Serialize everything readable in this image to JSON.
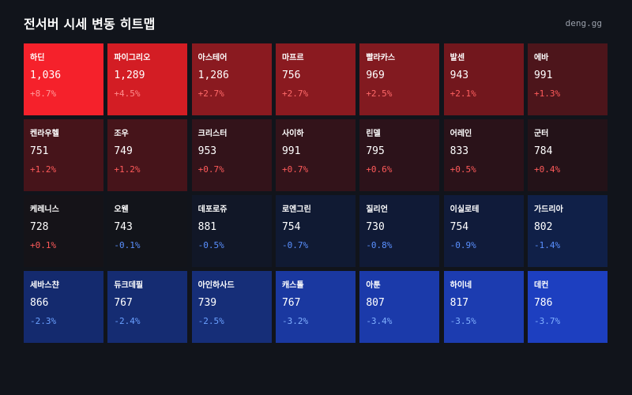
{
  "header": {
    "title": "전서버 시세 변동 히트맵",
    "brand": "deng.gg"
  },
  "colors": {
    "up_text": "#ff5a5a",
    "down_text": "#4a8cff"
  },
  "cells": [
    {
      "name": "하딘",
      "price": "1,036",
      "change": "+8.7%",
      "bg": "#f5212b",
      "fg": "#ff9a9a"
    },
    {
      "name": "파이그리오",
      "price": "1,289",
      "change": "+4.5%",
      "bg": "#d31d24",
      "fg": "#ff8c8c"
    },
    {
      "name": "아스테어",
      "price": "1,286",
      "change": "+2.7%",
      "bg": "#8a1a20",
      "fg": "#ff6a6a"
    },
    {
      "name": "마프르",
      "price": "756",
      "change": "+2.7%",
      "bg": "#8a1a20",
      "fg": "#ff6a6a"
    },
    {
      "name": "빨라카스",
      "price": "969",
      "change": "+2.5%",
      "bg": "#821a20",
      "fg": "#ff6a6a"
    },
    {
      "name": "발센",
      "price": "943",
      "change": "+2.1%",
      "bg": "#72171d",
      "fg": "#ff6060"
    },
    {
      "name": "에바",
      "price": "991",
      "change": "+1.3%",
      "bg": "#4d151b",
      "fg": "#ff5a5a"
    },
    {
      "name": "켄라우헬",
      "price": "751",
      "change": "+1.2%",
      "bg": "#46141a",
      "fg": "#ff5a5a"
    },
    {
      "name": "조우",
      "price": "749",
      "change": "+1.2%",
      "bg": "#46141a",
      "fg": "#ff5a5a"
    },
    {
      "name": "크리스터",
      "price": "953",
      "change": "+0.7%",
      "bg": "#33131a",
      "fg": "#ff5a5a"
    },
    {
      "name": "사이하",
      "price": "991",
      "change": "+0.7%",
      "bg": "#33131a",
      "fg": "#ff5a5a"
    },
    {
      "name": "린델",
      "price": "795",
      "change": "+0.6%",
      "bg": "#2c121a",
      "fg": "#ff5a5a"
    },
    {
      "name": "어레인",
      "price": "833",
      "change": "+0.5%",
      "bg": "#2a1219",
      "fg": "#ff5a5a"
    },
    {
      "name": "군터",
      "price": "784",
      "change": "+0.4%",
      "bg": "#231218",
      "fg": "#ff5a5a"
    },
    {
      "name": "케레니스",
      "price": "728",
      "change": "+0.1%",
      "bg": "#151318",
      "fg": "#ff5a5a"
    },
    {
      "name": "오웬",
      "price": "743",
      "change": "-0.1%",
      "bg": "#12141a",
      "fg": "#5a90ff"
    },
    {
      "name": "데포로쥬",
      "price": "881",
      "change": "-0.5%",
      "bg": "#111727",
      "fg": "#5a90ff"
    },
    {
      "name": "로엔그린",
      "price": "754",
      "change": "-0.7%",
      "bg": "#101a33",
      "fg": "#5a90ff"
    },
    {
      "name": "질리언",
      "price": "730",
      "change": "-0.8%",
      "bg": "#101a36",
      "fg": "#5a90ff"
    },
    {
      "name": "이실로테",
      "price": "754",
      "change": "-0.9%",
      "bg": "#101b3a",
      "fg": "#5a90ff"
    },
    {
      "name": "가드리아",
      "price": "802",
      "change": "-1.4%",
      "bg": "#102048",
      "fg": "#5a90ff"
    },
    {
      "name": "세바스챤",
      "price": "866",
      "change": "-2.3%",
      "bg": "#142a6e",
      "fg": "#6aa0ff"
    },
    {
      "name": "듀크데필",
      "price": "767",
      "change": "-2.4%",
      "bg": "#152c72",
      "fg": "#6aa0ff"
    },
    {
      "name": "아인하사드",
      "price": "739",
      "change": "-2.5%",
      "bg": "#162e78",
      "fg": "#6aa0ff"
    },
    {
      "name": "캐스톨",
      "price": "767",
      "change": "-3.2%",
      "bg": "#1a38a0",
      "fg": "#80b0ff"
    },
    {
      "name": "아툰",
      "price": "807",
      "change": "-3.4%",
      "bg": "#1b3aaa",
      "fg": "#80b0ff"
    },
    {
      "name": "하이네",
      "price": "817",
      "change": "-3.5%",
      "bg": "#1c3cb0",
      "fg": "#80b0ff"
    },
    {
      "name": "데컨",
      "price": "786",
      "change": "-3.7%",
      "bg": "#1d3fc0",
      "fg": "#80b0ff"
    }
  ]
}
